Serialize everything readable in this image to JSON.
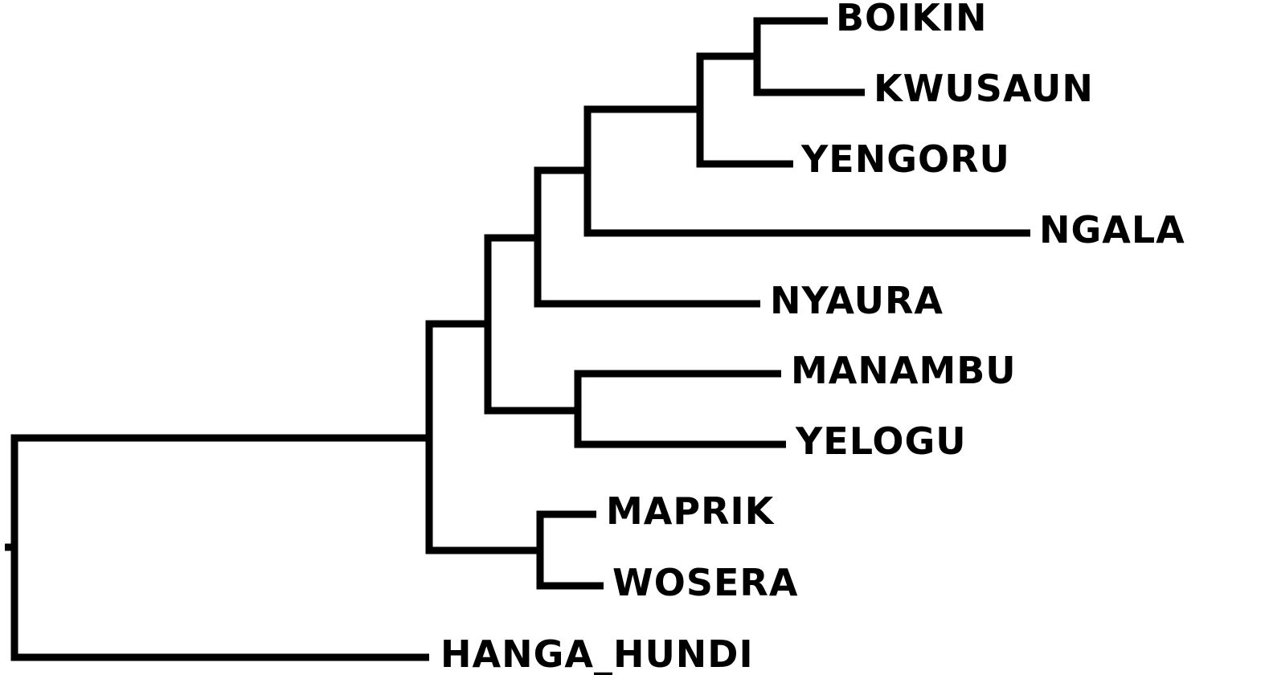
{
  "tree": {
    "leaves": [
      {
        "id": "boikin",
        "label": "BOIKIN"
      },
      {
        "id": "kwusaun",
        "label": "KWUSAUN"
      },
      {
        "id": "yengoru",
        "label": "YENGORU"
      },
      {
        "id": "ngala",
        "label": "NGALA"
      },
      {
        "id": "nyaura",
        "label": "NYAURA"
      },
      {
        "id": "manambu",
        "label": "MANAMBU"
      },
      {
        "id": "yelogu",
        "label": "YELOGU"
      },
      {
        "id": "maprik",
        "label": "MAPRIK"
      },
      {
        "id": "wosera",
        "label": "WOSERA"
      },
      {
        "id": "hanga_hundi",
        "label": "HANGA_HUNDI"
      }
    ]
  }
}
